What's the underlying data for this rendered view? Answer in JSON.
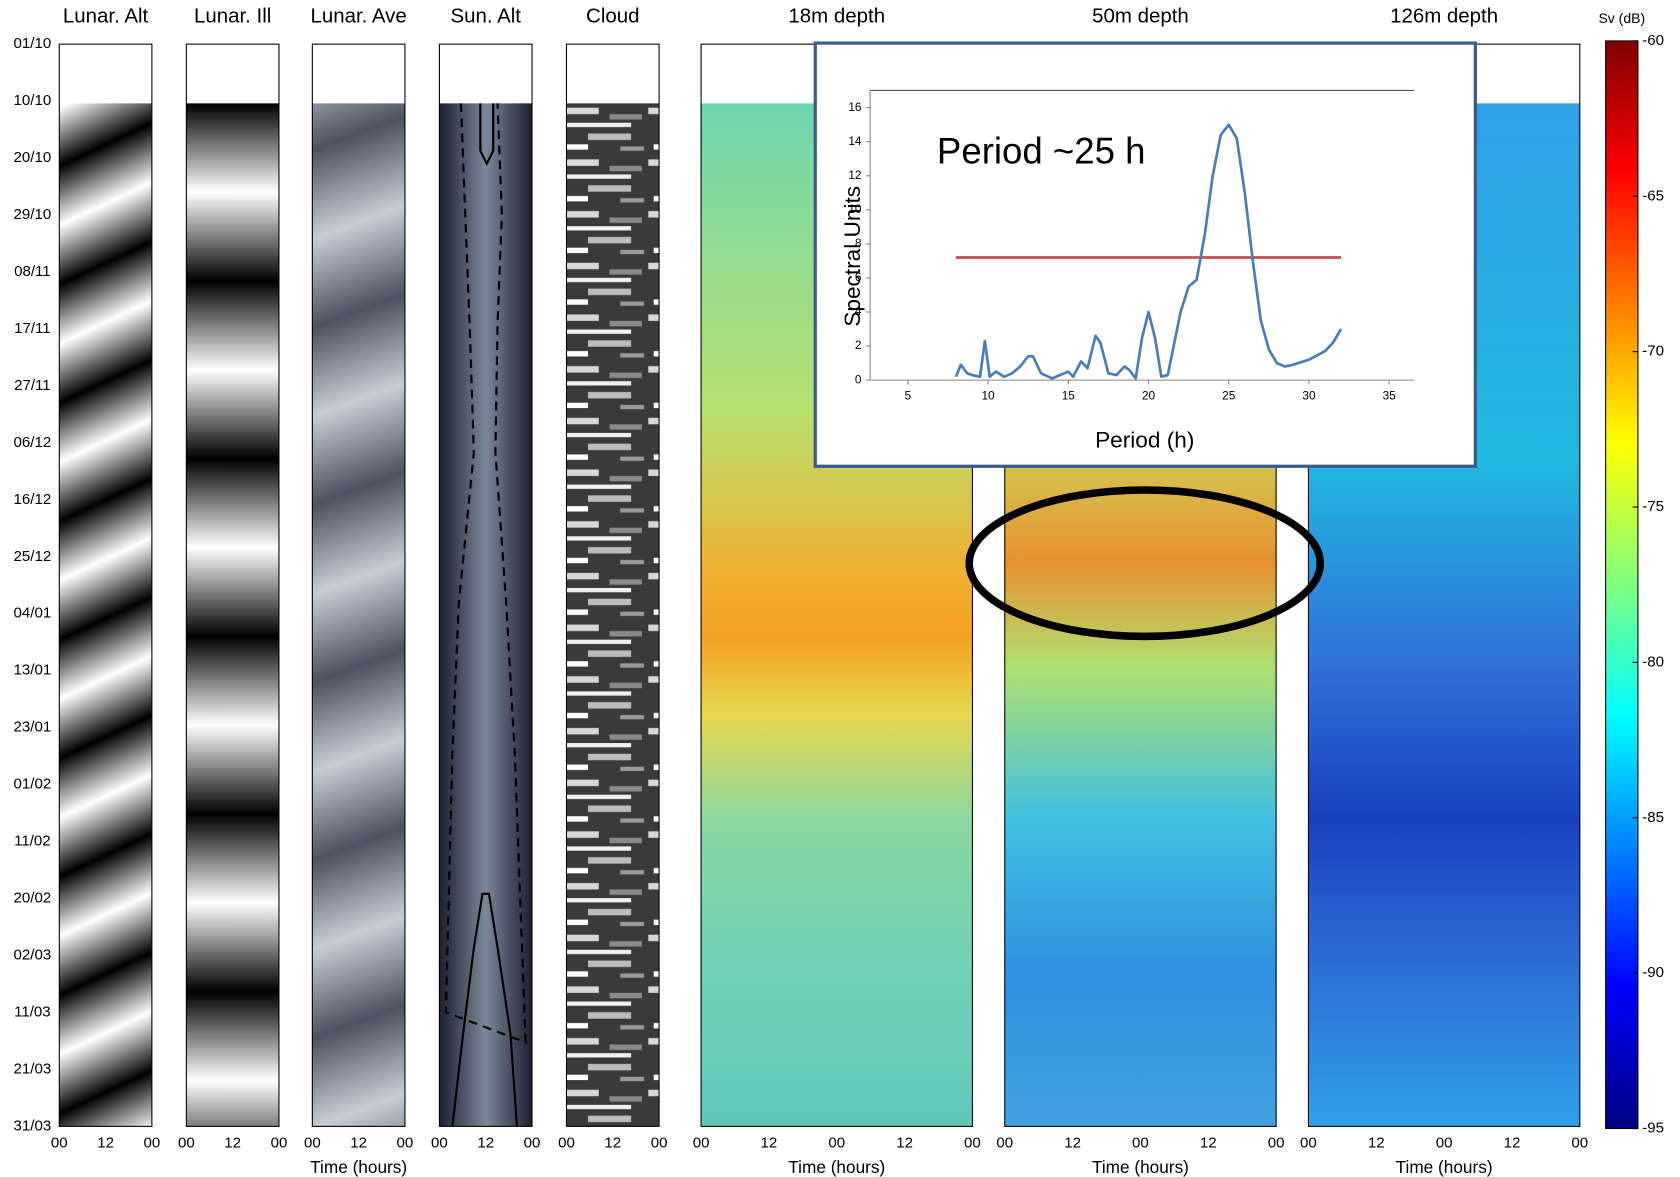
{
  "chart_data": [
    {
      "type": "heatmap",
      "panels": [
        {
          "title": "Lunar. Alt",
          "xticks": [
            "00",
            "12",
            "00"
          ]
        },
        {
          "title": "Lunar. Ill",
          "xticks": [
            "00",
            "12",
            "00"
          ]
        },
        {
          "title": "Lunar. Ave",
          "xticks": [
            "00",
            "12",
            "00"
          ]
        },
        {
          "title": "Sun. Alt",
          "xticks": [
            "00",
            "12",
            "00"
          ]
        },
        {
          "title": "Cloud",
          "xticks": [
            "00",
            "12",
            "00"
          ]
        },
        {
          "title": "18m depth",
          "xticks": [
            "00",
            "12",
            "00",
            "12",
            "00"
          ]
        },
        {
          "title": "50m depth",
          "xticks": [
            "00",
            "12",
            "00",
            "12",
            "00"
          ]
        },
        {
          "title": "126m depth",
          "xticks": [
            "00",
            "12",
            "00",
            "12",
            "00"
          ]
        }
      ],
      "ylabels": [
        "01/10",
        "10/10",
        "20/10",
        "29/10",
        "08/11",
        "17/11",
        "27/11",
        "06/12",
        "16/12",
        "25/12",
        "04/01",
        "13/01",
        "23/01",
        "01/02",
        "11/02",
        "20/02",
        "02/03",
        "11/03",
        "21/03",
        "31/03"
      ],
      "xlabel": "Time (hours)",
      "colorbar": {
        "title": "Sv (dB)",
        "colormap": "jet",
        "ylim": [
          -95,
          -60
        ],
        "yticks": [
          -60,
          -65,
          -70,
          -75,
          -80,
          -85,
          -90,
          -95
        ]
      }
    },
    {
      "type": "line",
      "xlabel": "Period (h)",
      "ylabel": "Spectral Units",
      "annotation": "Period ~25 h",
      "xlim": [
        5,
        35
      ],
      "xticks": [
        5,
        10,
        15,
        20,
        25,
        30,
        35
      ],
      "ylim": [
        0,
        16
      ],
      "yticks": [
        0,
        2,
        4,
        6,
        8,
        10,
        12,
        14,
        16
      ],
      "x": [
        8,
        8.3,
        8.7,
        9,
        9.5,
        9.8,
        10.1,
        10.5,
        11,
        11.5,
        12,
        12.5,
        12.8,
        13.3,
        14,
        14.5,
        15,
        15.3,
        15.8,
        16.2,
        16.7,
        17,
        17.5,
        18,
        18.5,
        18.8,
        19.2,
        19.6,
        20,
        20.4,
        20.8,
        21.2,
        22,
        22.5,
        23,
        23.5,
        24,
        24.5,
        25,
        25.5,
        26,
        26.5,
        27,
        27.5,
        28,
        28.5,
        29,
        30,
        31,
        31.5,
        32
      ],
      "series": [
        {
          "color": "#4a7ebb",
          "values": [
            0.2,
            0.9,
            0.4,
            0.3,
            0.2,
            2.3,
            0.2,
            0.5,
            0.2,
            0.4,
            0.8,
            1.4,
            1.4,
            0.4,
            0.1,
            0.3,
            0.5,
            0.2,
            1.1,
            0.7,
            2.6,
            2.2,
            0.4,
            0.3,
            0.8,
            0.6,
            0.1,
            2.5,
            4,
            2.5,
            0.2,
            0.3,
            4,
            5.5,
            5.9,
            8.5,
            12,
            14.4,
            15,
            14.2,
            11,
            7,
            3.5,
            1.8,
            1,
            0.8,
            0.9,
            1.2,
            1.7,
            2.2,
            3
          ]
        }
      ],
      "threshold": {
        "y": 7.2,
        "x": [
          8,
          32
        ],
        "color": "#c0504d"
      }
    }
  ]
}
